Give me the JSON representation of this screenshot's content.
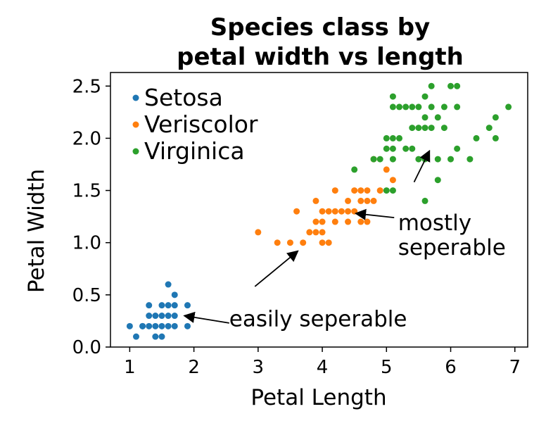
{
  "chart_data": {
    "type": "scatter",
    "title": [
      "Species class by",
      "petal width vs length"
    ],
    "xlabel": "Petal Length",
    "ylabel": "Petal Width",
    "xlim": [
      0.7,
      7.2
    ],
    "ylim": [
      0.0,
      2.63
    ],
    "xticks": [
      1,
      2,
      3,
      4,
      5,
      6,
      7
    ],
    "yticks": [
      0.0,
      0.5,
      1.0,
      1.5,
      2.0,
      2.5
    ],
    "grid": false,
    "legend_position": "top-left",
    "series": [
      {
        "name": "Setosa",
        "color": "#1f77b4",
        "points": [
          [
            1.0,
            0.2
          ],
          [
            1.1,
            0.1
          ],
          [
            1.2,
            0.2
          ],
          [
            1.3,
            0.2
          ],
          [
            1.3,
            0.3
          ],
          [
            1.3,
            0.4
          ],
          [
            1.4,
            0.2
          ],
          [
            1.4,
            0.3
          ],
          [
            1.5,
            0.1
          ],
          [
            1.5,
            0.2
          ],
          [
            1.5,
            0.3
          ],
          [
            1.5,
            0.4
          ],
          [
            1.6,
            0.2
          ],
          [
            1.6,
            0.4
          ],
          [
            1.6,
            0.6
          ],
          [
            1.7,
            0.2
          ],
          [
            1.7,
            0.3
          ],
          [
            1.7,
            0.4
          ],
          [
            1.7,
            0.5
          ],
          [
            1.9,
            0.2
          ],
          [
            1.9,
            0.4
          ],
          [
            1.4,
            0.1
          ],
          [
            1.6,
            0.3
          ],
          [
            1.2,
            0.2
          ]
        ]
      },
      {
        "name": "Veriscolor",
        "color": "#ff7f0e",
        "points": [
          [
            3.0,
            1.1
          ],
          [
            3.3,
            1.0
          ],
          [
            3.5,
            1.0
          ],
          [
            3.6,
            1.3
          ],
          [
            3.7,
            1.0
          ],
          [
            3.8,
            1.1
          ],
          [
            3.9,
            1.1
          ],
          [
            3.9,
            1.2
          ],
          [
            3.9,
            1.4
          ],
          [
            4.0,
            1.0
          ],
          [
            4.0,
            1.2
          ],
          [
            4.0,
            1.3
          ],
          [
            4.1,
            1.0
          ],
          [
            4.1,
            1.3
          ],
          [
            4.2,
            1.2
          ],
          [
            4.2,
            1.3
          ],
          [
            4.2,
            1.5
          ],
          [
            4.3,
            1.3
          ],
          [
            4.4,
            1.2
          ],
          [
            4.4,
            1.3
          ],
          [
            4.4,
            1.4
          ],
          [
            4.5,
            1.3
          ],
          [
            4.5,
            1.5
          ],
          [
            4.6,
            1.2
          ],
          [
            4.6,
            1.4
          ],
          [
            4.6,
            1.5
          ],
          [
            4.7,
            1.2
          ],
          [
            4.7,
            1.4
          ],
          [
            4.7,
            1.5
          ],
          [
            4.8,
            1.4
          ],
          [
            4.8,
            1.8
          ],
          [
            4.9,
            1.5
          ],
          [
            5.0,
            1.7
          ],
          [
            5.1,
            1.6
          ],
          [
            4.0,
            1.1
          ]
        ]
      },
      {
        "name": "Virginica",
        "color": "#2ca02c",
        "points": [
          [
            4.5,
            1.7
          ],
          [
            4.8,
            1.8
          ],
          [
            4.9,
            1.8
          ],
          [
            5.0,
            1.5
          ],
          [
            5.0,
            1.9
          ],
          [
            5.0,
            2.0
          ],
          [
            5.1,
            1.5
          ],
          [
            5.1,
            1.8
          ],
          [
            5.1,
            1.9
          ],
          [
            5.1,
            2.0
          ],
          [
            5.1,
            2.3
          ],
          [
            5.1,
            2.4
          ],
          [
            5.2,
            2.0
          ],
          [
            5.2,
            2.3
          ],
          [
            5.3,
            1.9
          ],
          [
            5.3,
            2.3
          ],
          [
            5.4,
            2.1
          ],
          [
            5.4,
            2.3
          ],
          [
            5.5,
            1.8
          ],
          [
            5.5,
            2.1
          ],
          [
            5.5,
            2.3
          ],
          [
            5.6,
            1.4
          ],
          [
            5.6,
            1.8
          ],
          [
            5.6,
            2.1
          ],
          [
            5.6,
            2.2
          ],
          [
            5.6,
            2.4
          ],
          [
            5.7,
            2.1
          ],
          [
            5.7,
            2.3
          ],
          [
            5.7,
            2.5
          ],
          [
            5.8,
            1.6
          ],
          [
            5.8,
            1.8
          ],
          [
            5.8,
            2.2
          ],
          [
            5.9,
            2.1
          ],
          [
            5.9,
            2.3
          ],
          [
            6.0,
            1.8
          ],
          [
            6.0,
            2.5
          ],
          [
            6.1,
            1.9
          ],
          [
            6.1,
            2.3
          ],
          [
            6.1,
            2.5
          ],
          [
            6.3,
            1.8
          ],
          [
            6.4,
            2.0
          ],
          [
            6.6,
            2.1
          ],
          [
            6.7,
            2.0
          ],
          [
            6.7,
            2.2
          ],
          [
            6.9,
            2.3
          ],
          [
            5.4,
            1.9
          ]
        ]
      }
    ],
    "annotations": [
      {
        "lines": [
          "easily seperable"
        ],
        "text_pos": [
          2.55,
          0.2
        ],
        "arrow_tail": [
          2.55,
          0.23
        ],
        "arrow_head": [
          1.85,
          0.3
        ]
      },
      {
        "lines": [],
        "text_pos": [
          2.9,
          0.55
        ],
        "arrow_tail": [
          2.95,
          0.58
        ],
        "arrow_head": [
          3.62,
          0.92
        ]
      },
      {
        "lines": [
          "mostly",
          "seperable"
        ],
        "text_pos": [
          5.18,
          1.12
        ],
        "arrow_tail": [
          5.12,
          1.24
        ],
        "arrow_head": [
          4.52,
          1.28
        ]
      },
      {
        "lines": [],
        "text_pos": [
          5.4,
          1.5
        ],
        "arrow_tail": [
          5.43,
          1.58
        ],
        "arrow_head": [
          5.67,
          1.88
        ]
      }
    ]
  }
}
